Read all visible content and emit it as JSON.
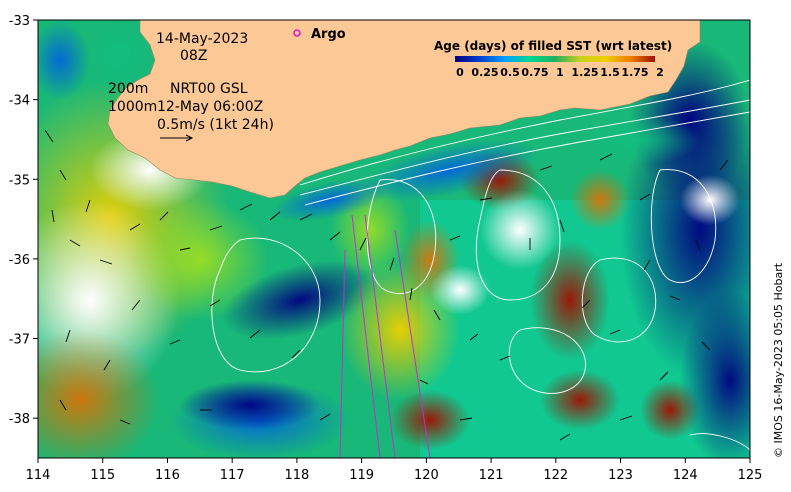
{
  "map": {
    "date_label": "14-May-2023",
    "time_label": "08Z",
    "argo_label": "Argo",
    "depth_200": "200m",
    "depth_1000": "1000m",
    "product": "NRT00 GSL",
    "product_time": "12-May 06:00Z",
    "current_scale": "0.5m/s (1kt 24h)",
    "credit": "© IMOS 16-May-2023 05:05 Hobart",
    "colors": {
      "land": "#fcc896",
      "cloud": "#ffffff",
      "contour": "#ffffff",
      "vector": "#000000",
      "argo_marker": "#e020c0",
      "track": "#c030d0"
    }
  },
  "colorbar": {
    "title": "Age (days) of filled SST (wrt latest)",
    "ticks": [
      "0",
      "0.25",
      "0.5",
      "0.75",
      "1",
      "1.25",
      "1.5",
      "1.75",
      "2"
    ],
    "values": [
      0,
      0.25,
      0.5,
      0.75,
      1,
      1.25,
      1.5,
      1.75,
      2
    ],
    "colors": [
      "#000080",
      "#0040d0",
      "#00a0ff",
      "#00d890",
      "#20b060",
      "#c8d020",
      "#f0d000",
      "#f08000",
      "#a01000"
    ]
  },
  "axes": {
    "x_ticks": [
      "114",
      "115",
      "116",
      "117",
      "118",
      "119",
      "120",
      "121",
      "122",
      "123",
      "124",
      "125"
    ],
    "x_values": [
      114,
      115,
      116,
      117,
      118,
      119,
      120,
      121,
      122,
      123,
      124,
      125
    ],
    "y_ticks": [
      "-33",
      "-34",
      "-35",
      "-36",
      "-37",
      "-38"
    ],
    "y_values": [
      -33,
      -34,
      -35,
      -36,
      -37,
      -38
    ],
    "xlim": [
      114,
      125
    ],
    "ylim": [
      -38.5,
      -33
    ]
  }
}
